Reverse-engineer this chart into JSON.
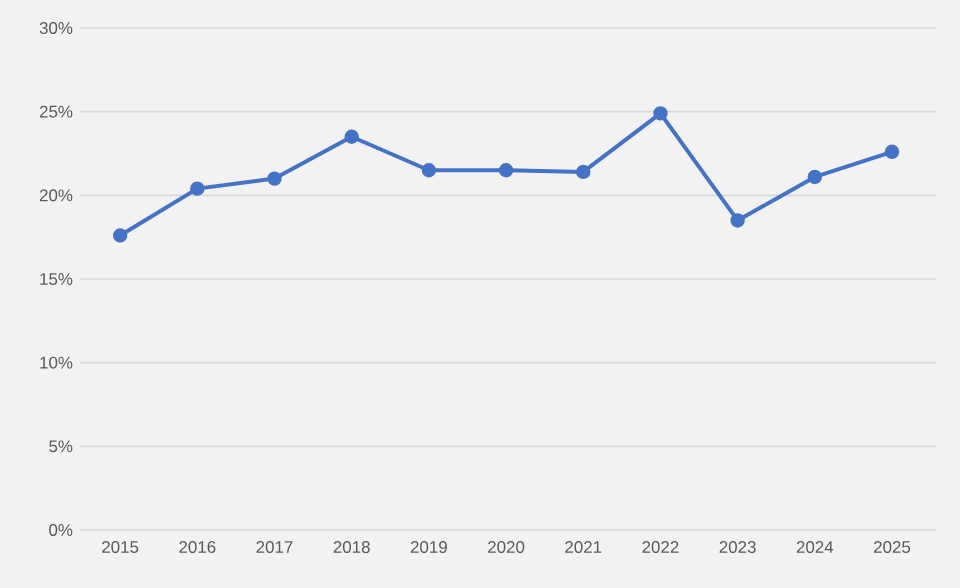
{
  "chart_data": {
    "type": "line",
    "categories": [
      "2015",
      "2016",
      "2017",
      "2018",
      "2019",
      "2020",
      "2021",
      "2022",
      "2023",
      "2024",
      "2025"
    ],
    "values": [
      17.6,
      20.4,
      21.0,
      23.5,
      21.5,
      21.5,
      21.4,
      24.9,
      18.5,
      21.1,
      22.6
    ],
    "color": "#4472c4",
    "marker": "circle",
    "line_style": "solid",
    "grid": "y",
    "ylim": [
      0,
      30
    ],
    "yticks": [
      {
        "value": 0,
        "label": "0%"
      },
      {
        "value": 5,
        "label": "5%"
      },
      {
        "value": 10,
        "label": "10%"
      },
      {
        "value": 15,
        "label": "15%"
      },
      {
        "value": 20,
        "label": "20%"
      },
      {
        "value": 25,
        "label": "25%"
      },
      {
        "value": 30,
        "label": "30%"
      }
    ]
  }
}
